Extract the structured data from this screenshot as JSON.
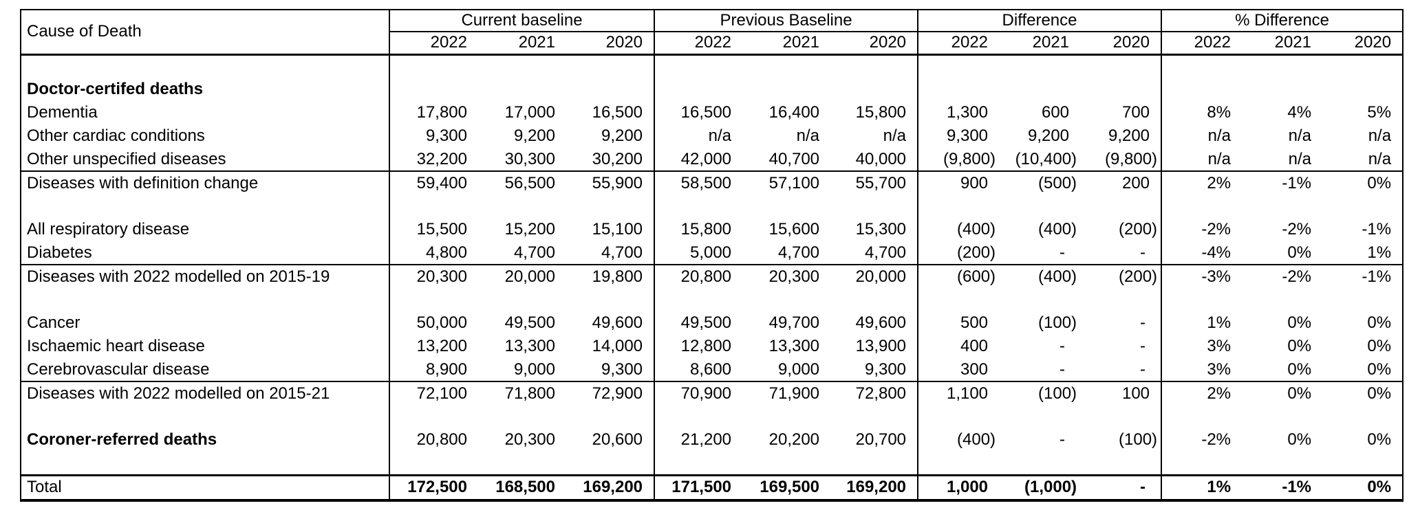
{
  "colors": {
    "text": "#000000",
    "background": "#ffffff",
    "border": "#000000"
  },
  "table": {
    "corner_label": "Cause of Death",
    "groups": [
      {
        "label": "Current baseline",
        "years": [
          "2022",
          "2021",
          "2020"
        ]
      },
      {
        "label": "Previous Baseline",
        "years": [
          "2022",
          "2021",
          "2020"
        ]
      },
      {
        "label": "Difference",
        "years": [
          "2022",
          "2021",
          "2020"
        ]
      },
      {
        "label": "% Difference",
        "years": [
          "2022",
          "2021",
          "2020"
        ]
      }
    ],
    "rows": [
      {
        "type": "blank"
      },
      {
        "type": "section",
        "label": "Doctor-certifed deaths"
      },
      {
        "type": "data",
        "label": "Dementia",
        "values": [
          "17,800",
          "17,000",
          "16,500",
          "16,500",
          "16,400",
          "15,800",
          "1,300",
          "600",
          "700",
          "8%",
          "4%",
          "5%"
        ]
      },
      {
        "type": "data",
        "label": "Other cardiac conditions",
        "values": [
          "9,300",
          "9,200",
          "9,200",
          "n/a",
          "n/a",
          "n/a",
          "9,300",
          "9,200",
          "9,200",
          "n/a",
          "n/a",
          "n/a"
        ]
      },
      {
        "type": "data",
        "label": "Other unspecified diseases",
        "values": [
          "32,200",
          "30,300",
          "30,200",
          "42,000",
          "40,700",
          "40,000",
          "(9,800)",
          "(10,400)",
          "(9,800)",
          "n/a",
          "n/a",
          "n/a"
        ]
      },
      {
        "type": "subtotal",
        "label": "Diseases with definition change",
        "values": [
          "59,400",
          "56,500",
          "55,900",
          "58,500",
          "57,100",
          "55,700",
          "900",
          "(500)",
          "200",
          "2%",
          "-1%",
          "0%"
        ]
      },
      {
        "type": "blank"
      },
      {
        "type": "data",
        "label": "All respiratory disease",
        "values": [
          "15,500",
          "15,200",
          "15,100",
          "15,800",
          "15,600",
          "15,300",
          "(400)",
          "(400)",
          "(200)",
          "-2%",
          "-2%",
          "-1%"
        ]
      },
      {
        "type": "data",
        "label": "Diabetes",
        "values": [
          "4,800",
          "4,700",
          "4,700",
          "5,000",
          "4,700",
          "4,700",
          "(200)",
          "-",
          "-",
          "-4%",
          "0%",
          "1%"
        ]
      },
      {
        "type": "subtotal",
        "label": "Diseases with 2022 modelled on 2015-19",
        "values": [
          "20,300",
          "20,000",
          "19,800",
          "20,800",
          "20,300",
          "20,000",
          "(600)",
          "(400)",
          "(200)",
          "-3%",
          "-2%",
          "-1%"
        ]
      },
      {
        "type": "blank"
      },
      {
        "type": "data",
        "label": "Cancer",
        "values": [
          "50,000",
          "49,500",
          "49,600",
          "49,500",
          "49,700",
          "49,600",
          "500",
          "(100)",
          "-",
          "1%",
          "0%",
          "0%"
        ]
      },
      {
        "type": "data",
        "label": "Ischaemic heart disease",
        "values": [
          "13,200",
          "13,300",
          "14,000",
          "12,800",
          "13,300",
          "13,900",
          "400",
          "-",
          "-",
          "3%",
          "0%",
          "0%"
        ]
      },
      {
        "type": "data",
        "label": "Cerebrovascular disease",
        "values": [
          "8,900",
          "9,000",
          "9,300",
          "8,600",
          "9,000",
          "9,300",
          "300",
          "-",
          "-",
          "3%",
          "0%",
          "0%"
        ]
      },
      {
        "type": "subtotal",
        "label": "Diseases with 2022 modelled on 2015-21",
        "values": [
          "72,100",
          "71,800",
          "72,900",
          "70,900",
          "71,900",
          "72,800",
          "1,100",
          "(100)",
          "100",
          "2%",
          "0%",
          "0%"
        ]
      },
      {
        "type": "blank"
      },
      {
        "type": "leader",
        "label": "Coroner-referred deaths",
        "values": [
          "20,800",
          "20,300",
          "20,600",
          "21,200",
          "20,200",
          "20,700",
          "(400)",
          "-",
          "(100)",
          "-2%",
          "0%",
          "0%"
        ]
      },
      {
        "type": "blank"
      },
      {
        "type": "total",
        "label": "Total",
        "values": [
          "172,500",
          "168,500",
          "169,200",
          "171,500",
          "169,500",
          "169,200",
          "1,000",
          "(1,000)",
          "-",
          "1%",
          "-1%",
          "0%"
        ]
      }
    ]
  }
}
